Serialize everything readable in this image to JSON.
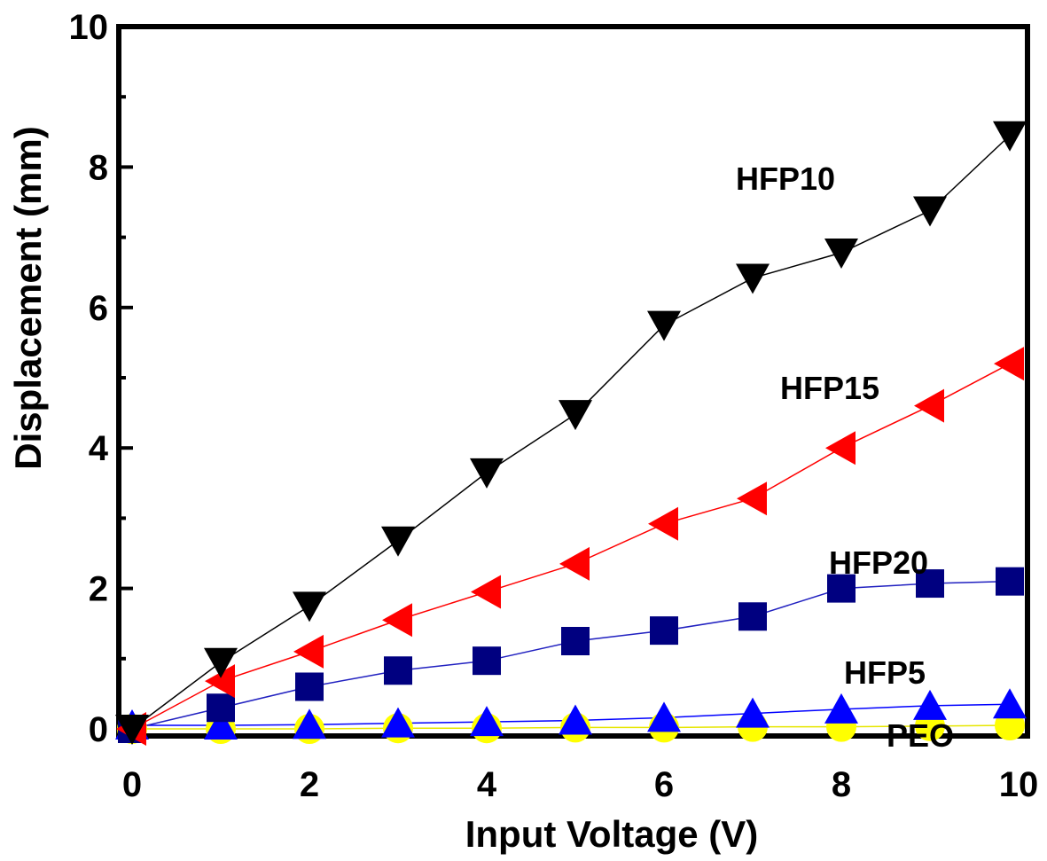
{
  "chart_data": {
    "type": "line",
    "title": "",
    "xlabel": "Input Voltage (V)",
    "ylabel": "Displacement (mm)",
    "xlim": [
      0,
      10
    ],
    "ylim": [
      0,
      10
    ],
    "x_ticks": [
      "0",
      "2",
      "4",
      "6",
      "8",
      "10"
    ],
    "y_ticks": [
      "0",
      "2",
      "4",
      "6",
      "8",
      "10"
    ],
    "grid": false,
    "x": [
      0,
      1,
      2,
      3,
      4,
      5,
      6,
      7,
      8,
      9,
      9.9
    ],
    "series": [
      {
        "name": "HFP10",
        "marker": "triangle-down",
        "color": "#000000",
        "line_color": "#000000",
        "values": [
          0,
          0.95,
          1.75,
          2.68,
          3.65,
          4.48,
          5.75,
          6.42,
          6.78,
          7.38,
          8.45
        ]
      },
      {
        "name": "HFP15",
        "marker": "triangle-left",
        "color": "#ff0000",
        "line_color": "#ff0000",
        "values": [
          0,
          0.68,
          1.1,
          1.55,
          1.95,
          2.35,
          2.92,
          3.28,
          4.0,
          4.6,
          5.2
        ]
      },
      {
        "name": "HFP20",
        "marker": "square",
        "color": "#000080",
        "line_color": "#2020c0",
        "values": [
          0,
          0.3,
          0.6,
          0.83,
          0.97,
          1.25,
          1.4,
          1.6,
          2.0,
          2.07,
          2.1
        ]
      },
      {
        "name": "HFP5",
        "marker": "triangle-up",
        "color": "#0000ff",
        "line_color": "#0000ff",
        "values": [
          0.05,
          0.05,
          0.06,
          0.08,
          0.1,
          0.12,
          0.16,
          0.22,
          0.28,
          0.33,
          0.35
        ]
      },
      {
        "name": "PEO",
        "marker": "circle",
        "color": "#ffff00",
        "line_color": "#e6e600",
        "values": [
          0,
          0,
          0,
          0.01,
          0.01,
          0.02,
          0.02,
          0.03,
          0.03,
          0.04,
          0.05
        ]
      }
    ]
  }
}
